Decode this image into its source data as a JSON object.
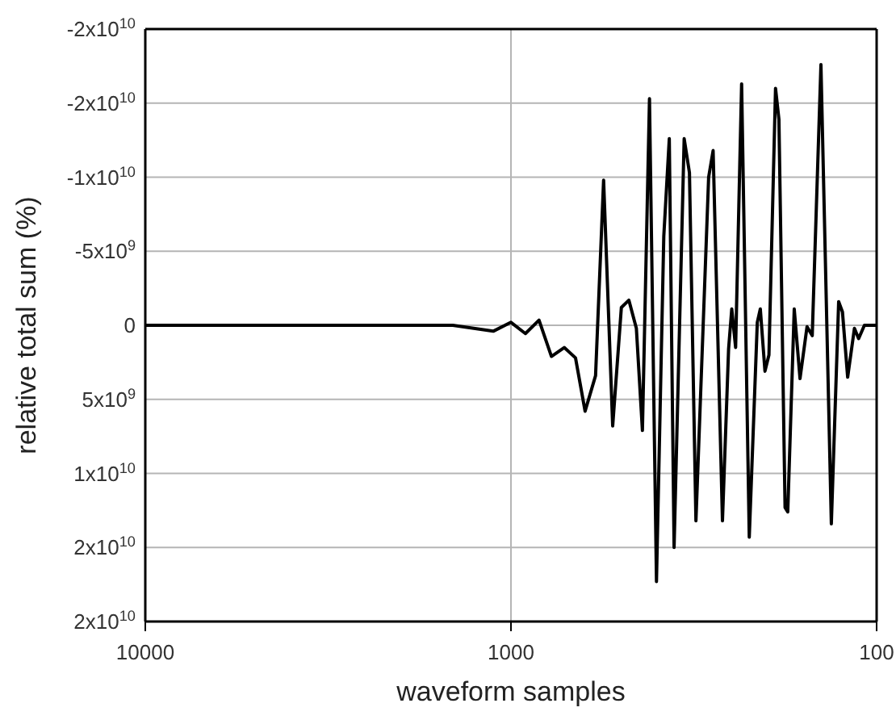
{
  "chart_data": {
    "type": "line",
    "xlabel": "waveform samples",
    "ylabel": "relative total sum (%)",
    "log": "x",
    "grid": true,
    "line_style": "solid",
    "marker": "none",
    "xlim": [
      10000,
      100
    ],
    "xticks": [
      10000,
      1000,
      100
    ],
    "ylim": [
      20000000000.0,
      -20000000000.0
    ],
    "yticks": [
      {
        "value": -20000000000.0,
        "label": "-2x10$^{10}$"
      },
      {
        "value": -15000000000.0,
        "label": "-2x10$^{10}$"
      },
      {
        "value": -10000000000.0,
        "label": "-1x10$^{10}$"
      },
      {
        "value": -5000000000.0,
        "label": "-5x10$^{9}$"
      },
      0,
      {
        "value": 5000000000.0,
        "label": "5x10$^{9}$"
      },
      {
        "value": 10000000000.0,
        "label": "1x10$^{10}$"
      },
      {
        "value": 15000000000.0,
        "label": "2x10$^{10}$"
      },
      {
        "value": 20000000000.0,
        "label": "2x10$^{10}$"
      }
    ],
    "series": [
      {
        "color": "#000000",
        "x": [
          10000,
          5000,
          2000,
          1442,
          1118,
          1000,
          913,
          838,
          775,
          715,
          666,
          627,
          587,
          558,
          527,
          499,
          476,
          454,
          437,
          418,
          400,
          382,
          369,
          358,
          336,
          325,
          312,
          288,
          280,
          264,
          254,
          249,
          243,
          234,
          223,
          212,
          208,
          202,
          197,
          189,
          185,
          178,
          175,
          168,
          162,
          155,
          150,
          142,
          133,
          127,
          124,
          120,
          115,
          112,
          108,
          100
        ],
        "values": [
          0,
          0,
          0,
          0,
          400000000.0,
          -200000000.0,
          560000000.0,
          -350000000.0,
          2100000000.0,
          1500000000.0,
          2200000000.0,
          5800000000.0,
          3400000000.0,
          -9800000000.0,
          6800000000.0,
          -1200000000.0,
          -1700000000.0,
          200000000.0,
          7100000000.0,
          -15300000000.0,
          17300000000.0,
          -6000000000.0,
          -12600000000.0,
          15000000000.0,
          -12600000000.0,
          -10300000000.0,
          13200000000.0,
          -10000000000.0,
          -11800000000.0,
          13200000000.0,
          1600000000.0,
          -1100000000.0,
          1500000000.0,
          -16300000000.0,
          14300000000.0,
          -200000000.0,
          -1100000000.0,
          3100000000.0,
          2000000000.0,
          -16000000000.0,
          -13900000000.0,
          12300000000.0,
          12600000000.0,
          -1100000000.0,
          3600000000.0,
          100000000.0,
          700000000.0,
          -17600000000.0,
          13400000000.0,
          -1600000000.0,
          -900000000.0,
          3500000000.0,
          200000000.0,
          900000000.0,
          0,
          0
        ]
      }
    ]
  }
}
